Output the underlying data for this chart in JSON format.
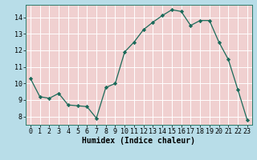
{
  "x": [
    0,
    1,
    2,
    3,
    4,
    5,
    6,
    7,
    8,
    9,
    10,
    11,
    12,
    13,
    14,
    15,
    16,
    17,
    18,
    19,
    20,
    21,
    22,
    23
  ],
  "y": [
    10.3,
    9.2,
    9.1,
    9.4,
    8.7,
    8.65,
    8.6,
    7.9,
    9.75,
    10.0,
    11.9,
    12.5,
    13.25,
    13.7,
    14.1,
    14.45,
    14.35,
    13.5,
    13.8,
    13.8,
    12.5,
    11.45,
    9.65,
    7.8
  ],
  "title": "",
  "xlabel": "Humidex (Indice chaleur)",
  "ylabel": "",
  "line_color": "#1a6b5a",
  "marker": "D",
  "marker_size": 2.2,
  "outer_bg": "#b0e0e8",
  "grid_color": "#e8c8c8",
  "axes_bg": "#e8c8c8",
  "plot_bg": "#cce8ee",
  "xlim": [
    -0.5,
    23.5
  ],
  "ylim": [
    7.5,
    14.75
  ],
  "yticks": [
    8,
    9,
    10,
    11,
    12,
    13,
    14
  ],
  "xticks": [
    0,
    1,
    2,
    3,
    4,
    5,
    6,
    7,
    8,
    9,
    10,
    11,
    12,
    13,
    14,
    15,
    16,
    17,
    18,
    19,
    20,
    21,
    22,
    23
  ],
  "xlabel_fontsize": 7.0,
  "tick_fontsize": 6.0
}
